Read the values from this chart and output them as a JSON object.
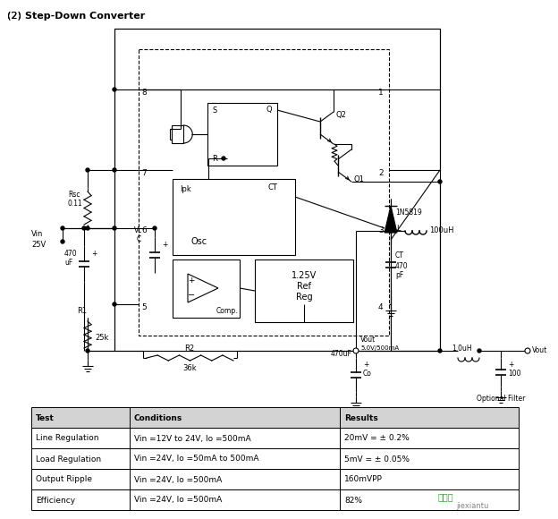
{
  "title": "(2)  Step-Down Converter",
  "title_bold_part": "Step-Down Converter",
  "bg_color": "#ffffff",
  "table": {
    "headers": [
      "Test",
      "Conditions",
      "Results"
    ],
    "rows": [
      [
        "Line Regulation",
        "Vin =12V to 24V, Io =500mA",
        "20mV = ± 0.2%"
      ],
      [
        "Load Regulation",
        "Vin =24V, Io =50mA to 500mA",
        "5mV = ± 0.05%"
      ],
      [
        "Output Ripple",
        "Vin =24V, Io =500mA",
        "160mVPP"
      ],
      [
        "Efficiency",
        "Vin =24V, Io =500mA",
        "82%"
      ]
    ],
    "header_bg": "#d3d3d3",
    "border_color": "#000000"
  },
  "watermark_text": "接线图",
  "watermark_sub": "jiexiantu"
}
